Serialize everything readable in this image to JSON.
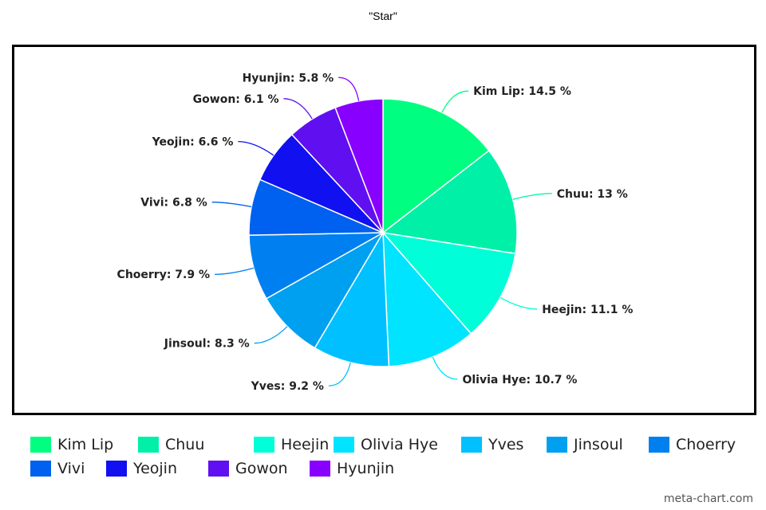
{
  "chart_data": {
    "type": "pie",
    "title": "\"Star\"",
    "label_suffix": " %",
    "slices": [
      {
        "name": "Kim Lip",
        "value": 14.5,
        "color": "#00ff80"
      },
      {
        "name": "Chuu",
        "value": 13,
        "color": "#00f0a8"
      },
      {
        "name": "Heejin",
        "value": 11.1,
        "color": "#00ffd8"
      },
      {
        "name": "Olivia Hye",
        "value": 10.7,
        "color": "#00e4ff"
      },
      {
        "name": "Yves",
        "value": 9.2,
        "color": "#00c0ff"
      },
      {
        "name": "Jinsoul",
        "value": 8.3,
        "color": "#00a0f0"
      },
      {
        "name": "Choerry",
        "value": 7.9,
        "color": "#0080f0"
      },
      {
        "name": "Vivi",
        "value": 6.8,
        "color": "#0060f0"
      },
      {
        "name": "Yeojin",
        "value": 6.6,
        "color": "#1010f0"
      },
      {
        "name": "Gowon",
        "value": 6.1,
        "color": "#6010f0"
      },
      {
        "name": "Hyunjin",
        "value": 5.8,
        "color": "#8800ff"
      }
    ],
    "legend_placement": "bottom"
  },
  "watermark": "meta-chart.com"
}
